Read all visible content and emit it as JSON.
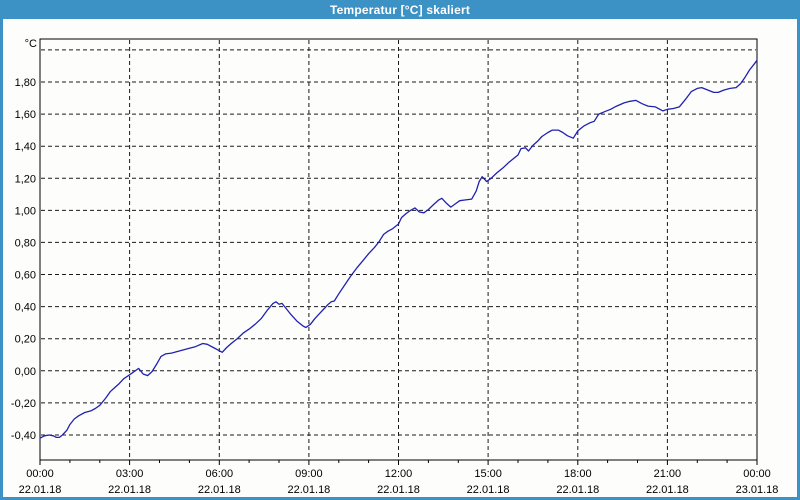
{
  "window": {
    "title": "Temperatur [°C] skaliert",
    "titlebar_color": "#3d92c5",
    "frame_color": "#3d92c5",
    "content_background": "#fdfefc",
    "title_text_color": "#ffffff"
  },
  "chart_data": {
    "type": "line",
    "title": "Temperatur [°C] skaliert",
    "grid": true,
    "legend_position": "none",
    "axis_color": "#000000",
    "grid_color": "#1a1a1a",
    "y_axis": {
      "unit": "°C",
      "ylim": [
        -0.556,
        2.068
      ],
      "grid_values": [
        2.0,
        1.8,
        1.6,
        1.4,
        1.2,
        1.0,
        0.8,
        0.6,
        0.4,
        0.2,
        0.0,
        -0.2,
        -0.4
      ],
      "ticks": [
        {
          "v": 1.8,
          "label": "1,80"
        },
        {
          "v": 1.6,
          "label": "1,60"
        },
        {
          "v": 1.4,
          "label": "1,40"
        },
        {
          "v": 1.2,
          "label": "1,20"
        },
        {
          "v": 1.0,
          "label": "1,00"
        },
        {
          "v": 0.8,
          "label": "0,80"
        },
        {
          "v": 0.6,
          "label": "0,60"
        },
        {
          "v": 0.4,
          "label": "0,40"
        },
        {
          "v": 0.2,
          "label": "0,20"
        },
        {
          "v": 0.0,
          "label": "0,00"
        },
        {
          "v": -0.2,
          "label": "-0,20"
        },
        {
          "v": -0.4,
          "label": "-0,40"
        }
      ]
    },
    "x_axis": {
      "xlim_hours": [
        0,
        24
      ],
      "grid_hours": [
        3,
        6,
        9,
        12,
        15,
        18,
        21
      ],
      "minor_tick_every_hours": 1,
      "major_tick_every_hours": 3,
      "labels": [
        {
          "h": 0,
          "time": "00:00",
          "date": "22.01.18"
        },
        {
          "h": 3,
          "time": "03:00",
          "date": "22.01.18"
        },
        {
          "h": 6,
          "time": "06:00",
          "date": "22.01.18"
        },
        {
          "h": 9,
          "time": "09:00",
          "date": "22.01.18"
        },
        {
          "h": 12,
          "time": "12:00",
          "date": "22.01.18"
        },
        {
          "h": 15,
          "time": "15:00",
          "date": "22.01.18"
        },
        {
          "h": 18,
          "time": "18:00",
          "date": "22.01.18"
        },
        {
          "h": 21,
          "time": "21:00",
          "date": "22.01.18"
        },
        {
          "h": 24,
          "time": "00:00",
          "date": "23.01.18"
        }
      ]
    },
    "series": [
      {
        "name": "Temperatur",
        "color": "#2121b0",
        "points": [
          [
            0.0,
            -0.42
          ],
          [
            0.15,
            -0.405
          ],
          [
            0.3,
            -0.4
          ],
          [
            0.45,
            -0.405
          ],
          [
            0.55,
            -0.415
          ],
          [
            0.65,
            -0.415
          ],
          [
            0.75,
            -0.4
          ],
          [
            0.9,
            -0.37
          ],
          [
            1.0,
            -0.335
          ],
          [
            1.15,
            -0.3
          ],
          [
            1.3,
            -0.28
          ],
          [
            1.5,
            -0.26
          ],
          [
            1.7,
            -0.25
          ],
          [
            1.85,
            -0.235
          ],
          [
            2.0,
            -0.215
          ],
          [
            2.2,
            -0.17
          ],
          [
            2.35,
            -0.13
          ],
          [
            2.5,
            -0.105
          ],
          [
            2.65,
            -0.08
          ],
          [
            2.8,
            -0.05
          ],
          [
            3.0,
            -0.025
          ],
          [
            3.15,
            -0.005
          ],
          [
            3.3,
            0.015
          ],
          [
            3.45,
            -0.02
          ],
          [
            3.6,
            -0.03
          ],
          [
            3.75,
            -0.005
          ],
          [
            3.9,
            0.04
          ],
          [
            4.05,
            0.09
          ],
          [
            4.2,
            0.105
          ],
          [
            4.4,
            0.11
          ],
          [
            4.6,
            0.12
          ],
          [
            4.8,
            0.13
          ],
          [
            5.0,
            0.14
          ],
          [
            5.2,
            0.15
          ],
          [
            5.45,
            0.17
          ],
          [
            5.6,
            0.165
          ],
          [
            5.8,
            0.145
          ],
          [
            6.0,
            0.125
          ],
          [
            6.1,
            0.115
          ],
          [
            6.25,
            0.145
          ],
          [
            6.4,
            0.17
          ],
          [
            6.6,
            0.2
          ],
          [
            6.8,
            0.235
          ],
          [
            7.0,
            0.26
          ],
          [
            7.2,
            0.29
          ],
          [
            7.4,
            0.325
          ],
          [
            7.6,
            0.375
          ],
          [
            7.8,
            0.42
          ],
          [
            7.9,
            0.43
          ],
          [
            8.0,
            0.415
          ],
          [
            8.1,
            0.42
          ],
          [
            8.25,
            0.385
          ],
          [
            8.4,
            0.35
          ],
          [
            8.6,
            0.31
          ],
          [
            8.8,
            0.28
          ],
          [
            8.9,
            0.27
          ],
          [
            9.05,
            0.29
          ],
          [
            9.2,
            0.325
          ],
          [
            9.35,
            0.355
          ],
          [
            9.5,
            0.385
          ],
          [
            9.65,
            0.415
          ],
          [
            9.75,
            0.43
          ],
          [
            9.85,
            0.435
          ],
          [
            10.0,
            0.48
          ],
          [
            10.2,
            0.535
          ],
          [
            10.4,
            0.59
          ],
          [
            10.6,
            0.64
          ],
          [
            10.8,
            0.685
          ],
          [
            11.0,
            0.73
          ],
          [
            11.2,
            0.77
          ],
          [
            11.35,
            0.805
          ],
          [
            11.5,
            0.85
          ],
          [
            11.65,
            0.87
          ],
          [
            11.8,
            0.885
          ],
          [
            12.0,
            0.915
          ],
          [
            12.1,
            0.955
          ],
          [
            12.25,
            0.98
          ],
          [
            12.4,
            1.0
          ],
          [
            12.55,
            1.015
          ],
          [
            12.7,
            0.99
          ],
          [
            12.85,
            0.985
          ],
          [
            13.0,
            1.005
          ],
          [
            13.2,
            1.04
          ],
          [
            13.35,
            1.065
          ],
          [
            13.45,
            1.075
          ],
          [
            13.6,
            1.045
          ],
          [
            13.75,
            1.02
          ],
          [
            13.9,
            1.04
          ],
          [
            14.05,
            1.06
          ],
          [
            14.25,
            1.065
          ],
          [
            14.45,
            1.07
          ],
          [
            14.6,
            1.12
          ],
          [
            14.7,
            1.18
          ],
          [
            14.8,
            1.21
          ],
          [
            14.95,
            1.18
          ],
          [
            15.1,
            1.2
          ],
          [
            15.3,
            1.235
          ],
          [
            15.5,
            1.265
          ],
          [
            15.7,
            1.3
          ],
          [
            15.9,
            1.33
          ],
          [
            16.0,
            1.345
          ],
          [
            16.1,
            1.385
          ],
          [
            16.25,
            1.39
          ],
          [
            16.35,
            1.37
          ],
          [
            16.5,
            1.405
          ],
          [
            16.65,
            1.43
          ],
          [
            16.8,
            1.46
          ],
          [
            17.0,
            1.485
          ],
          [
            17.15,
            1.5
          ],
          [
            17.35,
            1.5
          ],
          [
            17.5,
            1.485
          ],
          [
            17.65,
            1.465
          ],
          [
            17.85,
            1.45
          ],
          [
            18.0,
            1.495
          ],
          [
            18.2,
            1.525
          ],
          [
            18.4,
            1.545
          ],
          [
            18.55,
            1.555
          ],
          [
            18.7,
            1.6
          ],
          [
            18.9,
            1.615
          ],
          [
            19.1,
            1.63
          ],
          [
            19.3,
            1.65
          ],
          [
            19.55,
            1.67
          ],
          [
            19.75,
            1.68
          ],
          [
            19.95,
            1.685
          ],
          [
            20.15,
            1.665
          ],
          [
            20.35,
            1.65
          ],
          [
            20.6,
            1.645
          ],
          [
            20.85,
            1.62
          ],
          [
            21.0,
            1.63
          ],
          [
            21.2,
            1.635
          ],
          [
            21.4,
            1.645
          ],
          [
            21.6,
            1.69
          ],
          [
            21.8,
            1.74
          ],
          [
            22.0,
            1.76
          ],
          [
            22.15,
            1.765
          ],
          [
            22.35,
            1.75
          ],
          [
            22.55,
            1.735
          ],
          [
            22.7,
            1.735
          ],
          [
            22.9,
            1.75
          ],
          [
            23.1,
            1.76
          ],
          [
            23.3,
            1.765
          ],
          [
            23.45,
            1.79
          ],
          [
            23.6,
            1.83
          ],
          [
            23.75,
            1.875
          ],
          [
            23.9,
            1.91
          ],
          [
            24.0,
            1.935
          ]
        ]
      }
    ]
  }
}
